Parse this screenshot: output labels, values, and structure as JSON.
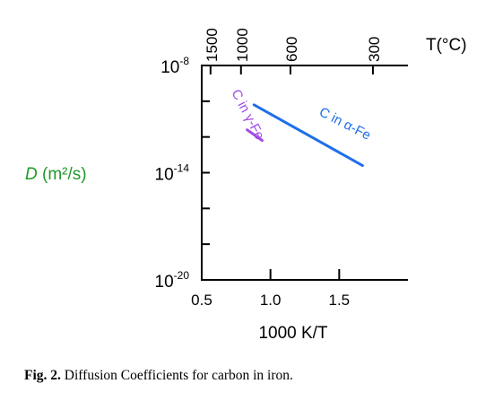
{
  "chart_data": {
    "type": "line",
    "ylabel": "D",
    "ylabel_unit": "(m²/s)",
    "xlabel": "1000 K/T",
    "top_axis_label": "T(°C)",
    "xlim": [
      0.5,
      2.0
    ],
    "ylim_log10": [
      -20,
      -8
    ],
    "x_ticks": [
      {
        "value": 0.5,
        "label": "0.5"
      },
      {
        "value": 1.0,
        "label": "1.0"
      },
      {
        "value": 1.5,
        "label": "1.5"
      }
    ],
    "y_ticks": [
      {
        "exponent": -8,
        "label_base": "10",
        "label_exp": "-8"
      },
      {
        "exponent": -14,
        "label_base": "10",
        "label_exp": "-14"
      },
      {
        "exponent": -20,
        "label_base": "10",
        "label_exp": "-20"
      }
    ],
    "top_ticks": [
      {
        "celsius": 1500,
        "label": "1500"
      },
      {
        "celsius": 1000,
        "label": "1000"
      },
      {
        "celsius": 600,
        "label": "600"
      },
      {
        "celsius": 300,
        "label": "300"
      }
    ],
    "series": [
      {
        "name": "C in α-Fe",
        "color": "#1f6fe8",
        "points": [
          {
            "x": 0.88,
            "log10_D": -10.2
          },
          {
            "x": 1.67,
            "log10_D": -13.6
          }
        ]
      },
      {
        "name": "C in γ-Fe",
        "color": "#a24be6",
        "points": [
          {
            "x": 0.83,
            "log10_D": -11.6
          },
          {
            "x": 0.94,
            "log10_D": -12.2
          }
        ]
      }
    ],
    "colors": {
      "axis": "#000000",
      "ylabel": "#1f9a2a"
    }
  },
  "caption": {
    "label": "Fig. 2.",
    "text": " Diffusion Coefficients for carbon in iron."
  }
}
